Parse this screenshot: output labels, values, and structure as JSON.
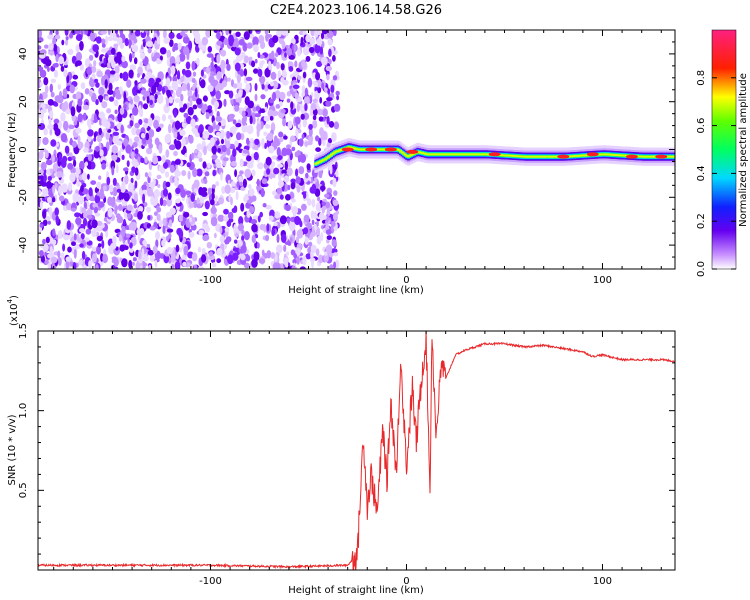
{
  "title": "C2E4.2023.106.14.58.G26",
  "chart_data": [
    {
      "type": "heatmap",
      "xlabel": "Height of straight line (km)",
      "ylabel": "Frequency (Hz)",
      "xlim": [
        -188,
        137
      ],
      "ylim": [
        -50,
        50
      ],
      "xticks": [
        -100,
        0,
        100
      ],
      "xtick_labels": [
        "-100",
        "0",
        "100"
      ],
      "yticks": [
        -40,
        -20,
        0,
        20,
        40
      ],
      "ytick_labels": [
        "-40",
        "-20",
        "0",
        "20",
        "40"
      ],
      "noise_region_x": [
        -188,
        -35
      ],
      "ridge": {
        "x": [
          -47,
          -42,
          -37,
          -30,
          -25,
          -20,
          -15,
          -10,
          -5,
          0,
          5,
          10,
          20,
          40,
          60,
          80,
          100,
          120,
          137
        ],
        "y": [
          -6,
          -4,
          -1,
          1,
          0,
          0,
          0,
          0,
          0,
          -3,
          -1,
          -2,
          -2,
          -2,
          -3,
          -3,
          -2,
          -3,
          -3
        ]
      },
      "colorbar": {
        "label": "Normalized spectral amplitude",
        "range": [
          0,
          1
        ],
        "ticks": [
          0.0,
          0.2,
          0.4,
          0.6,
          0.8
        ],
        "tick_labels": [
          "0.0",
          "0.2",
          "0.4",
          "0.6",
          "0.8"
        ],
        "colormap": "rainbow (white-violet-blue-cyan-green-yellow-red-magenta)"
      },
      "grid": false
    },
    {
      "type": "line",
      "xlabel": "Height of straight line (km)",
      "ylabel": "SNR (10 * v/v)",
      "yscale_label": "(x10",
      "yscale_exp": "4",
      "xlim": [
        -188,
        137
      ],
      "ylim": [
        0,
        1.5
      ],
      "xticks": [
        -100,
        0,
        100
      ],
      "xtick_labels": [
        "-100",
        "0",
        "100"
      ],
      "yticks": [
        0.5,
        1.0,
        1.5
      ],
      "ytick_labels": [
        "0.5",
        "1.0",
        "1.5"
      ],
      "series": [
        {
          "color": "#e8282a",
          "x": [
            -188,
            -150,
            -100,
            -60,
            -30,
            -25,
            -22,
            -20,
            -18,
            -15,
            -12,
            -10,
            -8,
            -5,
            -3,
            0,
            3,
            5,
            8,
            10,
            12,
            13,
            15,
            18,
            20,
            25,
            30,
            40,
            50,
            60,
            70,
            80,
            90,
            95,
            100,
            110,
            120,
            130,
            137
          ],
          "y": [
            0.03,
            0.03,
            0.03,
            0.02,
            0.03,
            0.1,
            0.85,
            0.4,
            0.6,
            0.35,
            0.9,
            0.55,
            1.05,
            0.6,
            1.35,
            0.65,
            1.15,
            0.8,
            1.25,
            1.45,
            0.5,
            1.52,
            0.85,
            1.3,
            1.2,
            1.35,
            1.38,
            1.42,
            1.42,
            1.4,
            1.41,
            1.39,
            1.37,
            1.34,
            1.35,
            1.32,
            1.32,
            1.32,
            1.31
          ]
        }
      ],
      "grid": false
    }
  ]
}
